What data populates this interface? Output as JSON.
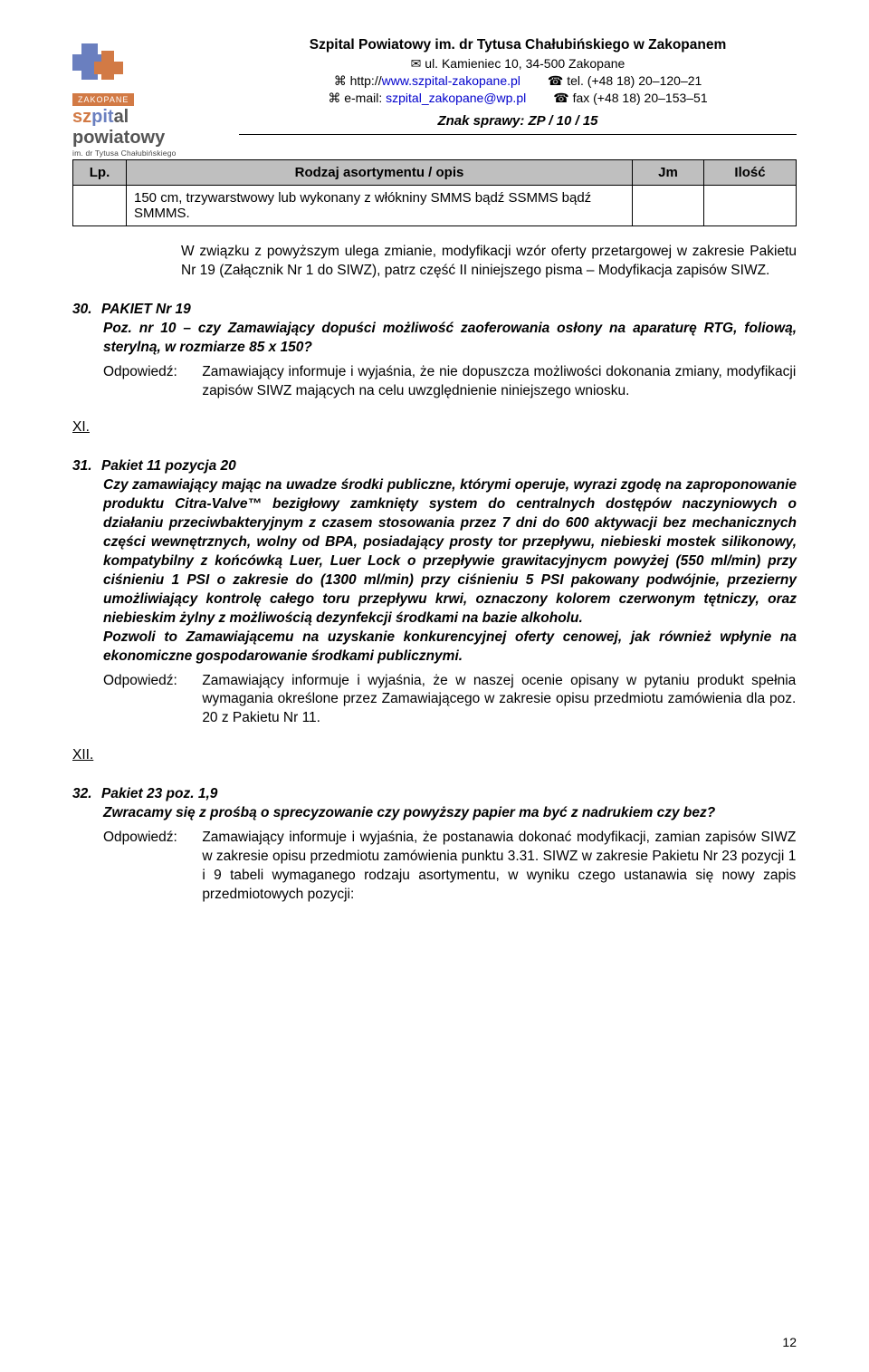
{
  "header": {
    "title": "Szpital Powiatowy im. dr Tytusa Chałubińskiego w Zakopanem",
    "address": "ul. Kamieniec 10, 34-500 Zakopane",
    "url_prefix": "⌘ http://",
    "url": "www.szpital-zakopane.pl",
    "tel": "☎ tel. (+48 18) 20–120–21",
    "email_prefix": "⌘ e-mail: ",
    "email": "szpital_zakopane@wp.pl",
    "fax": "☎ fax (+48 18) 20–153–51",
    "znak": "Znak sprawy: ZP / 10 / 15",
    "logo_zak": "ZAKOPANE",
    "logo_sub": "im. dr Tytusa Chałubińskiego"
  },
  "table": {
    "headers": {
      "lp": "Lp.",
      "opis": "Rodzaj asortymentu / opis",
      "jm": "Jm",
      "ilosc": "Ilość"
    },
    "cell_text": "150 cm, trzywarstwowy lub wykonany z włókniny SMMS bądź SSMMS bądź SMMMS."
  },
  "para1": "W związku z powyższym ulega zmianie, modyfikacji wzór oferty przetargowej w zakresie Pakietu Nr 19 (Załącznik Nr 1 do SIWZ), patrz część II niniejszego pisma – Modyfikacja zapisów SIWZ.",
  "sec30": {
    "num": "30.",
    "heading": "PAKIET Nr 19",
    "question": "Poz. nr 10 – czy Zamawiający dopuści możliwość zaoferowania osłony na aparaturę RTG, foliową, sterylną, w rozmiarze 85 x 150?",
    "odp_label": "Odpowiedź:",
    "odp_text": "Zamawiający informuje i wyjaśnia, że nie dopuszcza możliwości dokonania zmiany, modyfikacji zapisów SIWZ mających na celu uwzględnienie niniejszego wniosku."
  },
  "roman_xi": "XI.",
  "sec31": {
    "num": "31.",
    "heading": "Pakiet 11 pozycja 20",
    "question": "Czy zamawiający mając na uwadze środki publiczne, którymi operuje, wyrazi zgodę na zaproponowanie produktu Citra-Valve™ bezigłowy zamknięty system do centralnych dostępów naczyniowych o działaniu przeciwbakteryjnym z czasem stosowania przez 7 dni do 600 aktywacji bez mechanicznych części wewnętrznych, wolny od BPA, posiadający prosty tor przepływu, niebieski mostek silikonowy, kompatybilny z końcówką Luer, Luer Lock o przepływie grawitacyjnycm powyżej (550 ml/min) przy ciśnieniu 1 PSI o zakresie do (1300 ml/min) przy ciśnieniu 5 PSI pakowany podwójnie, przezierny umożliwiający kontrolę całego toru przepływu krwi, oznaczony kolorem czerwonym tętniczy, oraz niebieskim żylny z możliwością dezynfekcji środkami na bazie alkoholu.",
    "question2": "Pozwoli to Zamawiającemu na uzyskanie konkurencyjnej oferty cenowej, jak również wpłynie na ekonomiczne gospodarowanie środkami publicznymi.",
    "odp_label": "Odpowiedź:",
    "odp_text": "Zamawiający informuje i wyjaśnia, że w naszej ocenie opisany w pytaniu produkt spełnia wymagania określone przez Zamawiającego w zakresie opisu przedmiotu zamówienia dla poz. 20 z Pakietu Nr 11."
  },
  "roman_xii": "XII.",
  "sec32": {
    "num": "32.",
    "heading": "Pakiet 23 poz. 1,9",
    "question": "Zwracamy się z prośbą o sprecyzowanie czy powyższy papier ma być z nadrukiem czy bez?",
    "odp_label": "Odpowiedź:",
    "odp_text": "Zamawiający informuje i wyjaśnia, że postanawia dokonać modyfikacji, zamian zapisów SIWZ w zakresie opisu przedmiotu zamówienia punktu 3.31. SIWZ w zakresie Pakietu Nr 23 pozycji 1 i 9 tabeli wymaganego rodzaju asortymentu, w wyniku czego ustanawia się nowy zapis przedmiotowych pozycji:"
  },
  "page_number": "12"
}
